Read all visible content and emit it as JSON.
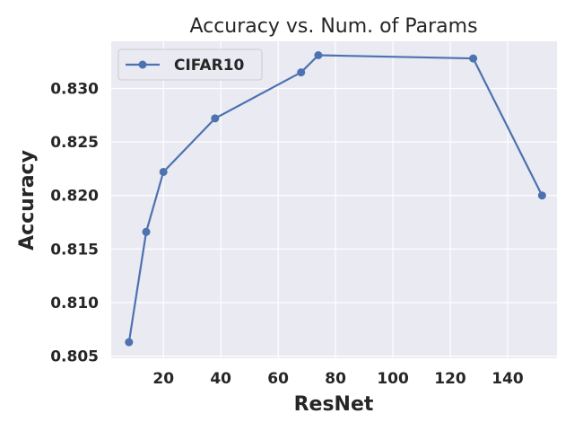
{
  "chart_data": {
    "type": "line",
    "title": "Accuracy vs. Num. of Params",
    "xlabel": "ResNet",
    "ylabel": "Accuracy",
    "xlim": [
      1.8,
      157.2
    ],
    "ylim": [
      0.8048,
      0.8344
    ],
    "xticks": [
      20,
      40,
      60,
      80,
      100,
      120,
      140
    ],
    "yticks": [
      0.805,
      0.81,
      0.815,
      0.82,
      0.825,
      0.83
    ],
    "ytick_labels": [
      "0.805",
      "0.810",
      "0.815",
      "0.820",
      "0.825",
      "0.830"
    ],
    "grid": true,
    "legend_position": "top-left",
    "series": [
      {
        "name": "CIFAR10",
        "color": "#4c72b0",
        "marker": "circle",
        "x": [
          8,
          14,
          20,
          38,
          68,
          74,
          128,
          152
        ],
        "y": [
          0.8063,
          0.8166,
          0.8222,
          0.8272,
          0.8315,
          0.8331,
          0.8328,
          0.82
        ]
      }
    ]
  }
}
